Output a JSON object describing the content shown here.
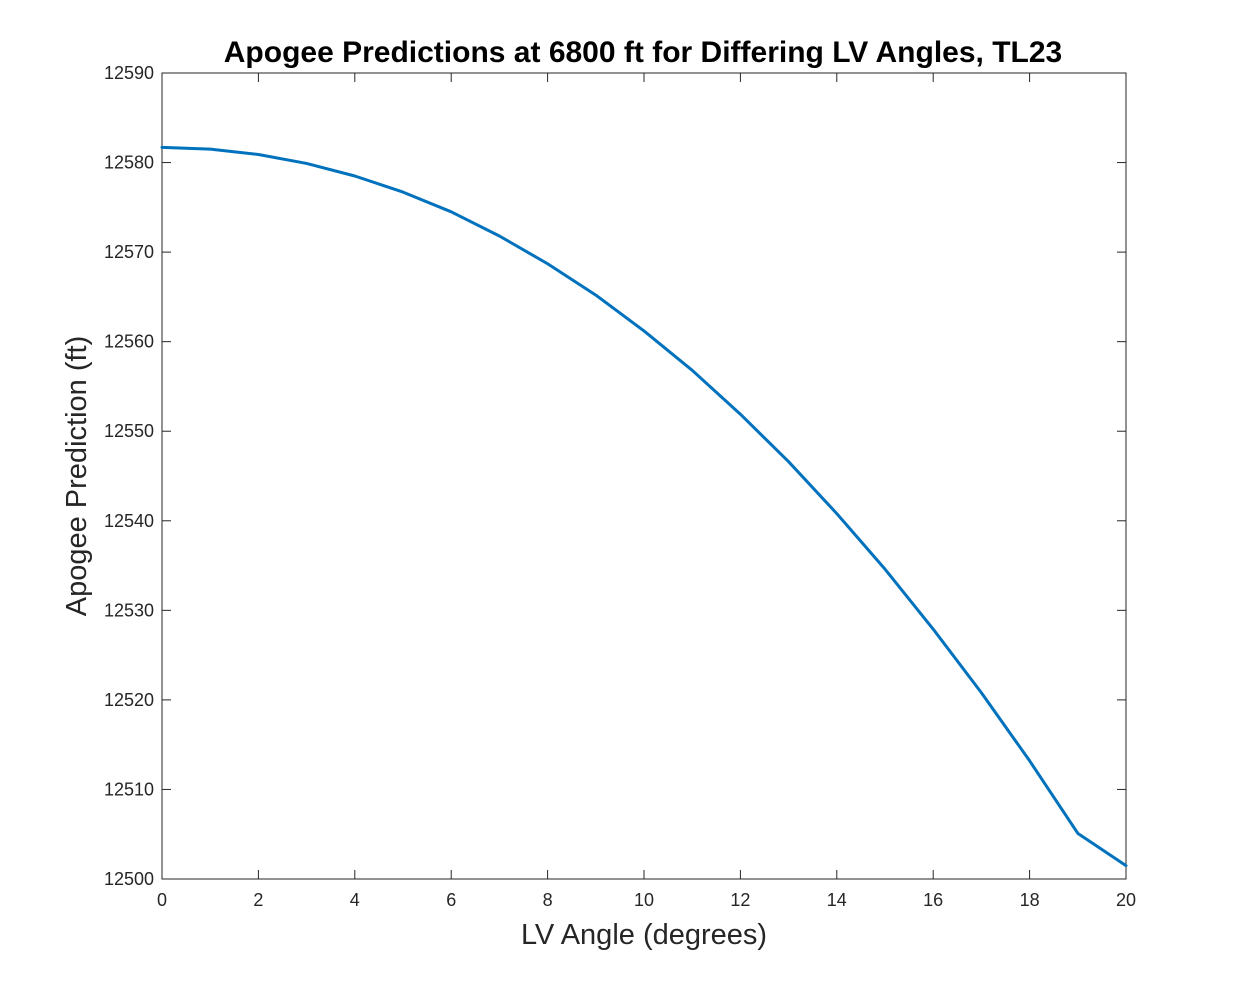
{
  "chart_data": {
    "type": "line",
    "title": "Apogee Predictions at 6800 ft for Differing LV Angles, TL23",
    "xlabel": "LV Angle (degrees)",
    "ylabel": "Apogee Prediction (ft)",
    "xlim": [
      0,
      20
    ],
    "ylim": [
      12500,
      12590
    ],
    "xticks": [
      0,
      2,
      4,
      6,
      8,
      10,
      12,
      14,
      16,
      18,
      20
    ],
    "yticks": [
      12500,
      12510,
      12520,
      12530,
      12540,
      12550,
      12560,
      12570,
      12580,
      12590
    ],
    "grid": false,
    "legend": "none",
    "series": [
      {
        "color": "#0072BD",
        "x": [
          0,
          1,
          2,
          3,
          4,
          5,
          6,
          7,
          8,
          9,
          10,
          11,
          12,
          13,
          14,
          15,
          16,
          17,
          18,
          19,
          20
        ],
        "y": [
          12581.7,
          12581.5,
          12580.9,
          12579.9,
          12578.5,
          12576.7,
          12574.5,
          12571.8,
          12568.7,
          12565.2,
          12561.2,
          12556.8,
          12551.9,
          12546.6,
          12540.8,
          12534.6,
          12527.9,
          12520.8,
          12513.2,
          12505.1,
          12501.5
        ]
      }
    ]
  }
}
